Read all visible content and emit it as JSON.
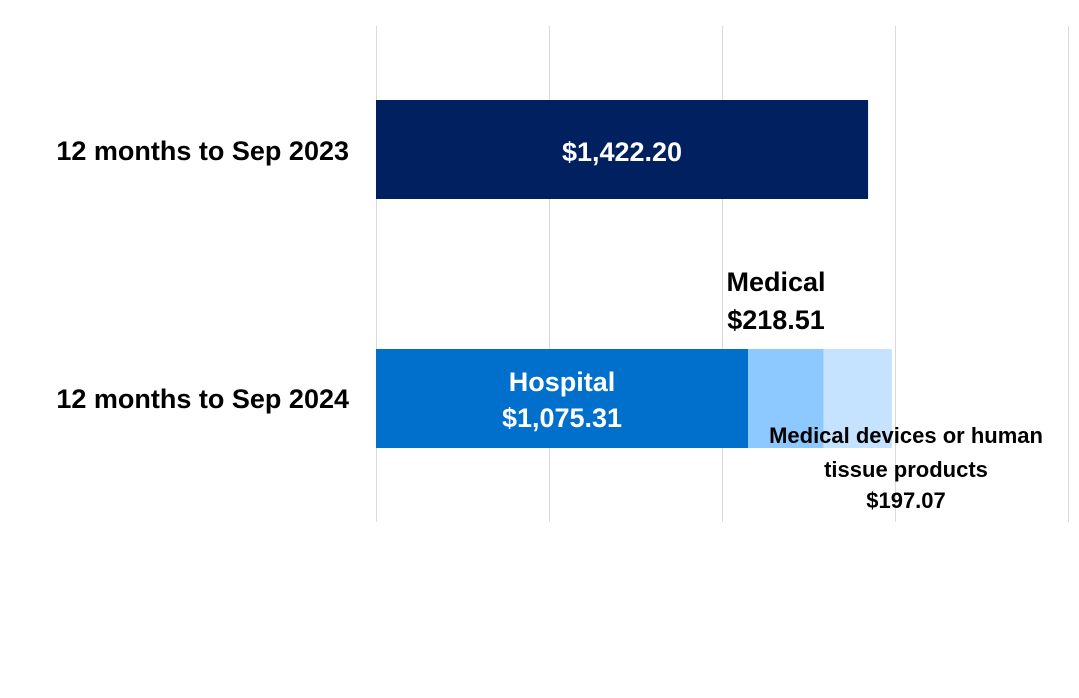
{
  "chart_data": {
    "type": "bar",
    "orientation": "horizontal",
    "stacked": true,
    "categories": [
      "12 months to Sep 2023",
      "12 months to Sep 2024"
    ],
    "series": [
      {
        "name": "",
        "category": "12 months to Sep 2023",
        "value": 1422.2,
        "label": "$1,422.20",
        "color": "#002060"
      },
      {
        "name": "Hospital",
        "category": "12 months to Sep 2024",
        "value": 1075.31,
        "label": "$1,075.31",
        "color": "#0070CC"
      },
      {
        "name": "Medical",
        "category": "12 months to Sep 2024",
        "value": 218.51,
        "label": "$218.51",
        "color": "#8DC8FF"
      },
      {
        "name": "Medical devices or human tissue products",
        "category": "12 months to Sep 2024",
        "value": 197.07,
        "label": "$197.07",
        "color": "#C5E3FF"
      }
    ],
    "annotations": {
      "medical_name_lines": [
        "Medical"
      ],
      "devices_name_lines": [
        "Medical devices or human",
        "tissue products"
      ]
    },
    "xlim": [
      0,
      2000
    ],
    "grid": true,
    "legend": "none",
    "colors": {
      "grid": "#D9D9D9",
      "text": "#000000",
      "inside_text": "#FFFFFF"
    }
  }
}
